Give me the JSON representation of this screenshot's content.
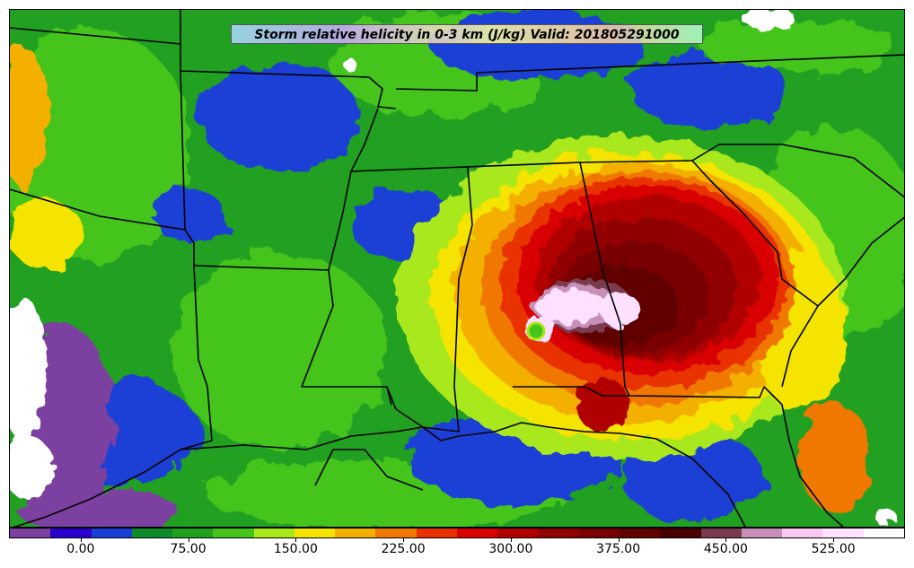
{
  "title": "Storm relative helicity in 0-3 km (J/kg) Valid: 201805291000",
  "colorbar": {
    "colors": [
      "#7b3fa0",
      "#2a00cc",
      "#1a3fd6",
      "#0e8a2a",
      "#1fa01f",
      "#44c41a",
      "#a8e81a",
      "#f4e400",
      "#f4b000",
      "#f07800",
      "#e83000",
      "#d80000",
      "#b00000",
      "#900000",
      "#780000",
      "#600000",
      "#480000",
      "#7a3a50",
      "#c890b8",
      "#f8c8f0",
      "#ffe0ff",
      "#ffffff"
    ],
    "tick_labels": [
      "0.00",
      "75.00",
      "150.00",
      "225.00",
      "300.00",
      "375.00",
      "450.00",
      "525.00"
    ],
    "tick_values": [
      0,
      75,
      150,
      225,
      300,
      375,
      450,
      525
    ],
    "range": [
      -50,
      575
    ]
  }
}
